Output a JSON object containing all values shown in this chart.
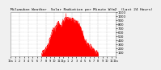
{
  "title": "Milwaukee Weather  Solar Radiation per Minute W/m2  (Last 24 Hours)",
  "title_fontsize": 3.2,
  "background_color": "#f0f0f0",
  "plot_bg_color": "#ffffff",
  "grid_color": "#bbbbbb",
  "fill_color": "#ff0000",
  "ylim": [
    0,
    1100
  ],
  "yticks": [
    100,
    200,
    300,
    400,
    500,
    600,
    700,
    800,
    900,
    1000,
    1100
  ],
  "num_points": 1440,
  "xtick_labels": [
    "12a",
    "1",
    "2",
    "3",
    "4",
    "5",
    "6",
    "7",
    "8",
    "9",
    "10",
    "11",
    "12p",
    "1",
    "2",
    "3",
    "4",
    "5",
    "6",
    "7",
    "8",
    "9",
    "10",
    "11",
    "12a"
  ],
  "xtick_fontsize": 2.5,
  "ytick_fontsize": 2.8,
  "start_hour": 7.0,
  "end_hour": 20.0,
  "peak_hour": 13.0,
  "peak_value": 950,
  "spike_hour": 12.6,
  "spike_value": 1060
}
